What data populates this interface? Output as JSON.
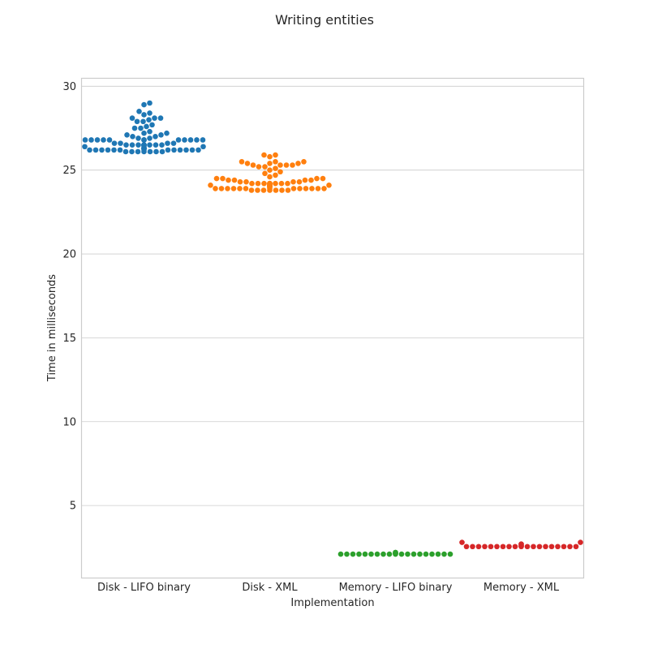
{
  "chart_data": {
    "type": "scatter",
    "subtype": "swarm",
    "title": "Writing entities",
    "xlabel": "Implementation",
    "ylabel": "Time in milliseconds",
    "ylim": [
      0.7,
      30.5
    ],
    "yticks": [
      5,
      10,
      15,
      20,
      25,
      30
    ],
    "grid": "horizontal",
    "legend": "none",
    "categories": [
      "Disk - LIFO binary",
      "Disk - XML",
      "Memory - LIFO binary",
      "Memory - XML"
    ],
    "colors": [
      "#1f77b4",
      "#ff7f0e",
      "#2ca02c",
      "#d62728"
    ],
    "series": [
      {
        "values": [
          26.1,
          26.1,
          26.1,
          26.1,
          26.1,
          26.1,
          26.1,
          26.2,
          26.2,
          26.2,
          26.2,
          26.2,
          26.2,
          26.2,
          26.2,
          26.2,
          26.2,
          26.2,
          26.2,
          26.2,
          26.3,
          26.3,
          26.3,
          26.3,
          26.3,
          26.3,
          26.4,
          26.4,
          26.4,
          26.5,
          26.5,
          26.5,
          26.5,
          26.5,
          26.5,
          26.5,
          26.5,
          26.5,
          26.5,
          26.5,
          26.6,
          26.6,
          26.6,
          26.6,
          26.8,
          26.8,
          26.8,
          26.8,
          26.8,
          26.8,
          26.8,
          26.8,
          26.8,
          26.8,
          26.8,
          26.8,
          26.8,
          26.9,
          26.9,
          27.0,
          27.0,
          27.1,
          27.1,
          27.2,
          27.2,
          27.3,
          27.5,
          27.5,
          27.6,
          27.7,
          27.9,
          27.9,
          28.0,
          28.1,
          28.1,
          28.1,
          28.3,
          28.4,
          28.5,
          28.9,
          29.0
        ]
      },
      {
        "values": [
          23.8,
          23.8,
          23.8,
          23.8,
          23.8,
          23.8,
          23.8,
          23.9,
          23.9,
          23.9,
          23.9,
          23.9,
          23.9,
          23.9,
          23.9,
          23.9,
          23.9,
          23.9,
          23.9,
          23.9,
          24.0,
          24.0,
          24.0,
          24.0,
          24.1,
          24.1,
          24.1,
          24.1,
          24.1,
          24.1,
          24.1,
          24.2,
          24.2,
          24.2,
          24.2,
          24.2,
          24.2,
          24.2,
          24.2,
          24.2,
          24.2,
          24.3,
          24.3,
          24.3,
          24.3,
          24.4,
          24.4,
          24.4,
          24.4,
          24.5,
          24.5,
          24.5,
          24.5,
          24.6,
          24.7,
          24.8,
          24.9,
          25.0,
          25.1,
          25.2,
          25.2,
          25.3,
          25.3,
          25.3,
          25.3,
          25.4,
          25.4,
          25.4,
          25.5,
          25.5,
          25.5,
          25.8,
          25.9,
          25.9
        ]
      },
      {
        "values": [
          2.1,
          2.1,
          2.1,
          2.1,
          2.1,
          2.1,
          2.1,
          2.1,
          2.1,
          2.1,
          2.1,
          2.1,
          2.1,
          2.1,
          2.1,
          2.1,
          2.1,
          2.1,
          2.1,
          2.15,
          2.15,
          2.2,
          2.2
        ]
      },
      {
        "values": [
          2.55,
          2.55,
          2.55,
          2.55,
          2.55,
          2.55,
          2.55,
          2.55,
          2.55,
          2.55,
          2.55,
          2.55,
          2.55,
          2.55,
          2.55,
          2.55,
          2.55,
          2.55,
          2.55,
          2.6,
          2.6,
          2.7,
          2.7,
          2.8,
          2.8
        ]
      }
    ]
  }
}
